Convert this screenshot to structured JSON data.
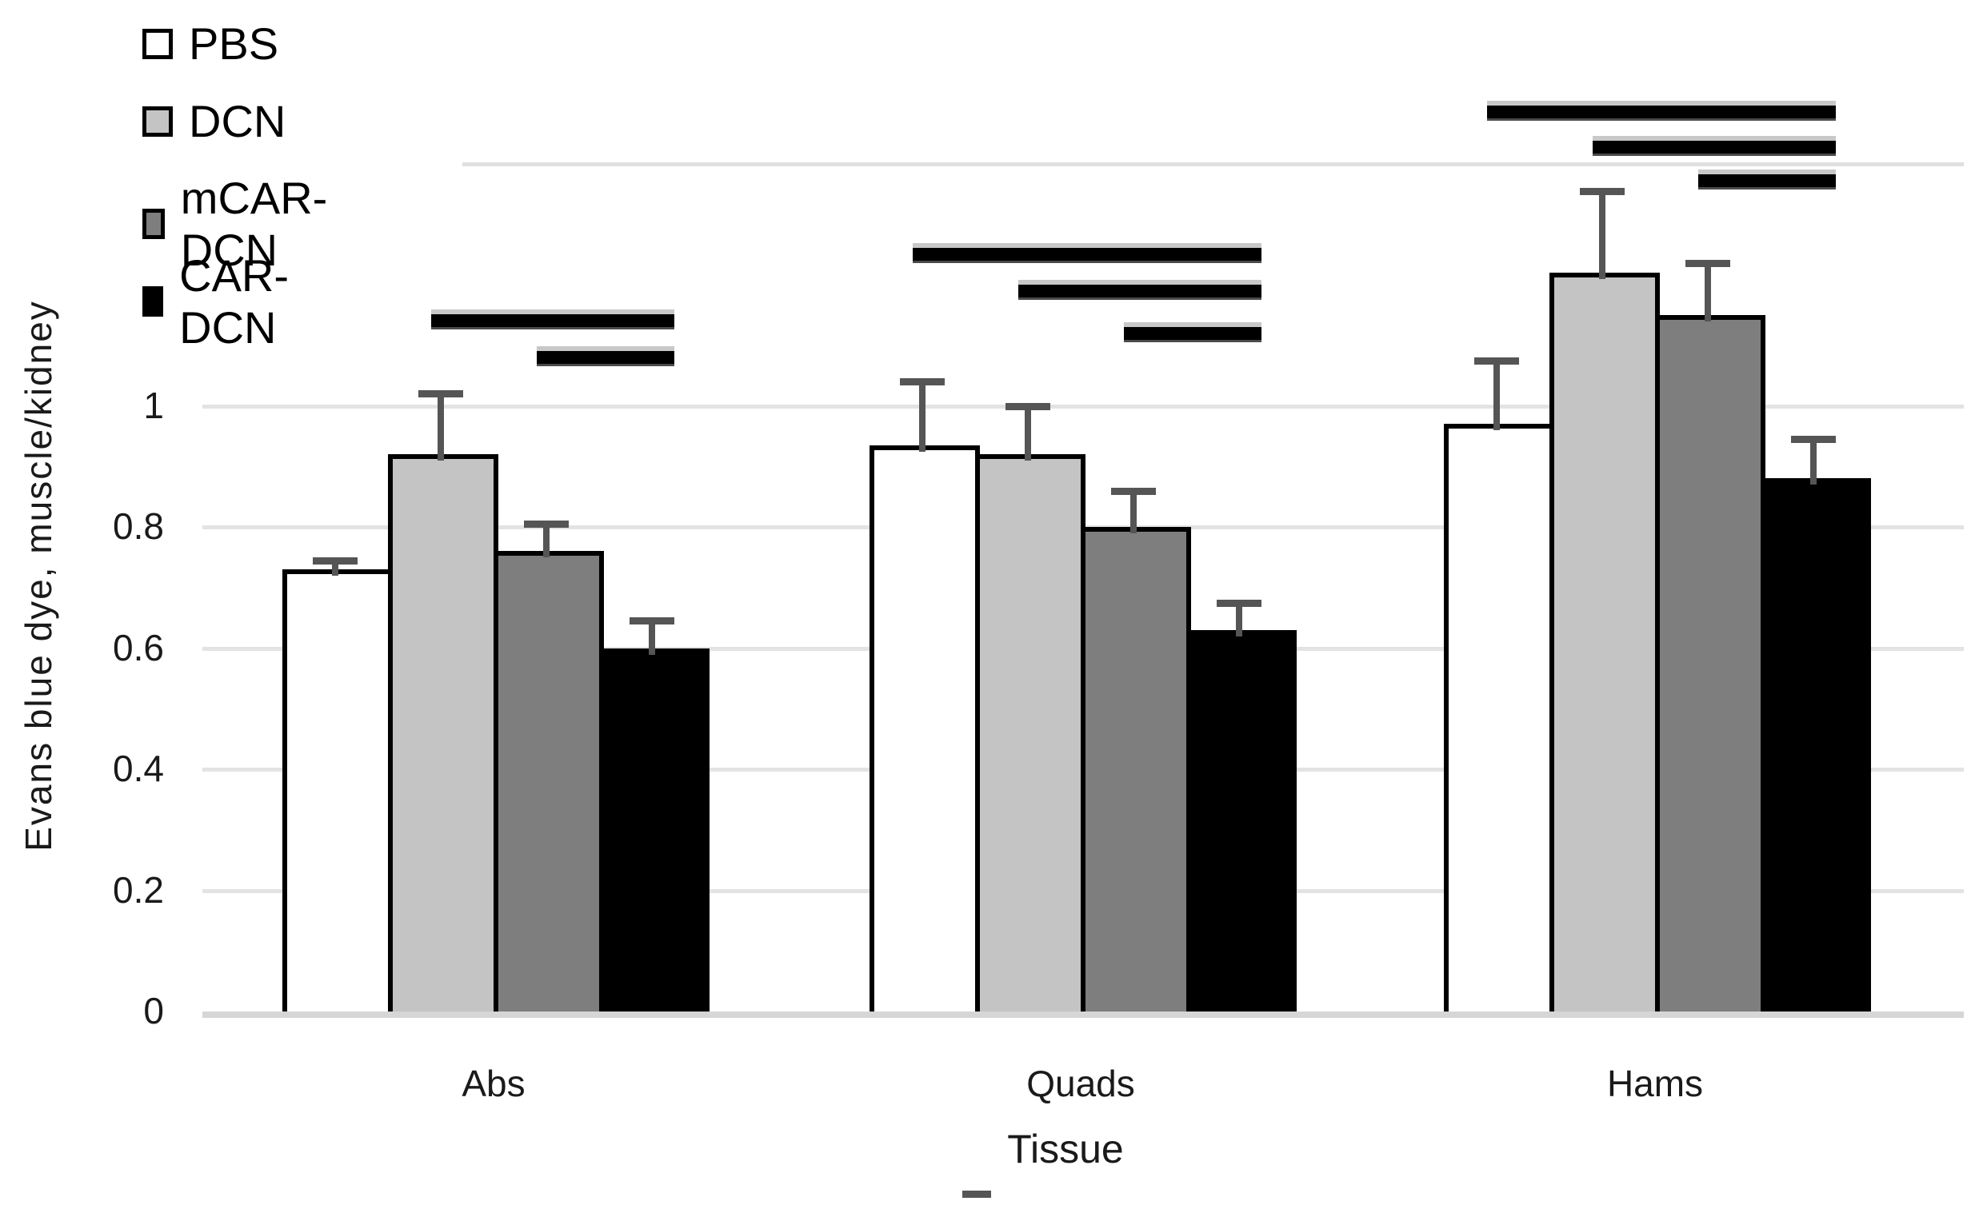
{
  "chart_data": {
    "type": "bar",
    "title": "",
    "xlabel": "Tissue",
    "ylabel": "Evans blue dye, muscle/kidney",
    "categories": [
      "Abs",
      "Quads",
      "Hams"
    ],
    "series": [
      {
        "name": "PBS",
        "fill": "#ffffff",
        "values": [
          0.73,
          0.935,
          0.97
        ],
        "errors": [
          0.015,
          0.105,
          0.105
        ]
      },
      {
        "name": "DCN",
        "fill": "#c4c4c4",
        "values": [
          0.92,
          0.92,
          1.22
        ],
        "errors": [
          0.1,
          0.08,
          0.135
        ]
      },
      {
        "name": "mCAR-DCN",
        "fill": "#7e7e7e",
        "values": [
          0.76,
          0.8,
          1.15
        ],
        "errors": [
          0.045,
          0.06,
          0.085
        ]
      },
      {
        "name": "CAR-DCN",
        "fill": "#000000",
        "values": [
          0.6,
          0.63,
          0.88
        ],
        "errors": [
          0.045,
          0.045,
          0.065
        ]
      }
    ],
    "yticks": [
      0,
      0.2,
      0.4,
      0.6,
      0.8,
      1
    ],
    "ytick_labels": [
      "0",
      "0.2",
      "0.4",
      "0.6",
      "0.8",
      "1"
    ],
    "ylim": [
      0,
      1.4
    ],
    "grid": true,
    "top_gridline_value": 1.4,
    "legend_position": "top-left",
    "error_bar_color": "#555555",
    "gridline_color": "#e3e3e3",
    "significance_bars": [
      {
        "category": "Abs",
        "from": "DCN",
        "to": "CAR-DCN",
        "y": 1.14
      },
      {
        "category": "Abs",
        "from": "mCAR-DCN",
        "to": "CAR-DCN",
        "y": 1.08
      },
      {
        "category": "Quads",
        "from": "PBS",
        "to": "CAR-DCN",
        "y": 1.25
      },
      {
        "category": "Quads",
        "from": "DCN",
        "to": "CAR-DCN",
        "y": 1.19
      },
      {
        "category": "Quads",
        "from": "mCAR-DCN",
        "to": "CAR-DCN",
        "y": 1.12
      },
      {
        "category": "Hams",
        "from": "PBS",
        "to": "CAR-DCN",
        "y": 1.485
      },
      {
        "category": "Hams",
        "from": "DCN",
        "to": "CAR-DCN",
        "y": 1.427
      },
      {
        "category": "Hams",
        "from": "mCAR-DCN",
        "to": "CAR-DCN",
        "y": 1.371
      }
    ]
  },
  "axis_titles": {
    "y": "Evans blue dye, muscle/kidney",
    "x": "Tissue"
  }
}
